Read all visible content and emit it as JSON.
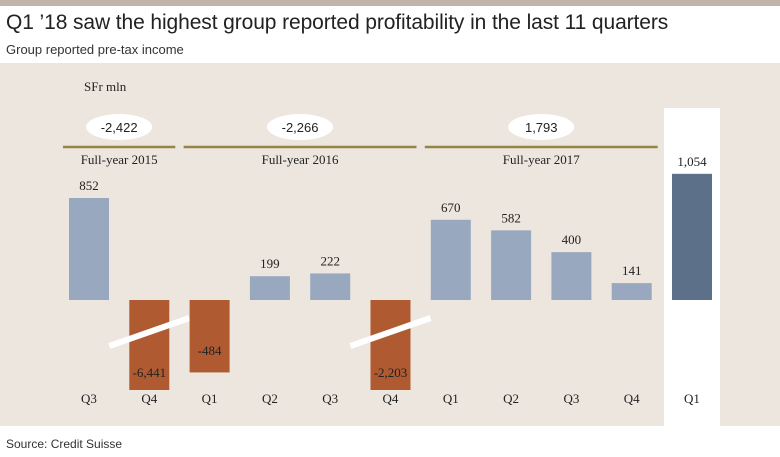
{
  "title": "Q1 ’18 saw the highest group reported profitability in the last 11 quarters",
  "subtitle": "Group reported pre-tax income",
  "source": "Source: Credit Suisse",
  "chart_data": {
    "type": "bar",
    "unit_label": "SFr mln",
    "categories": [
      "Q3",
      "Q4",
      "Q1",
      "Q2",
      "Q3",
      "Q4",
      "Q1",
      "Q2",
      "Q3",
      "Q4",
      "Q1"
    ],
    "values": [
      852,
      -6441,
      -484,
      199,
      222,
      -2203,
      670,
      582,
      400,
      141,
      1054
    ],
    "value_labels": [
      "852",
      "-6,441",
      "-484",
      "199",
      "222",
      "-2,203",
      "670",
      "582",
      "400",
      "141",
      "1,054"
    ],
    "truncated_bars": [
      1,
      5
    ],
    "highlight_index": 10,
    "groups": [
      {
        "label": "Full-year 2015",
        "total": "-2,422",
        "first": 0,
        "last": 1
      },
      {
        "label": "Full-year 2016",
        "total": "-2,266",
        "first": 2,
        "last": 5
      },
      {
        "label": "Full-year 2017",
        "total": "1,793",
        "first": 6,
        "last": 9
      }
    ],
    "colors": {
      "positive": "#98a9bf",
      "negative": "#b05a32",
      "highlight": "#5c7089",
      "group_line": "#958545",
      "background": "#ede6df"
    }
  }
}
